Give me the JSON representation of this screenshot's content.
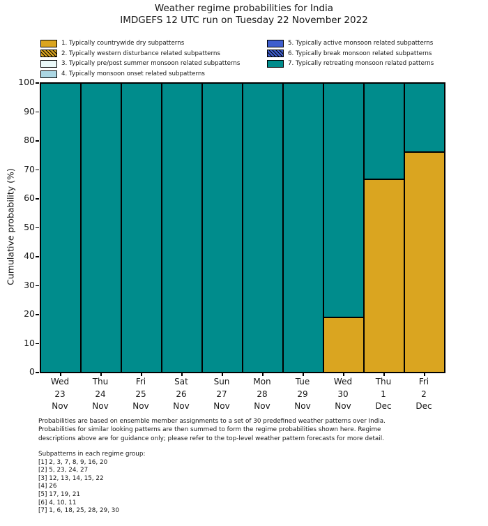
{
  "title": "Weather regime probabilities for India",
  "subtitle": "IMDGEFS 12 UTC run on Tuesday 22 November 2022",
  "legend": {
    "items": [
      {
        "id": 1,
        "label": "1. Typically countrywide dry subpatterns",
        "color": "#DAA520",
        "hatch": false
      },
      {
        "id": 2,
        "label": "2. Typically western disturbance related subpatterns",
        "color": "#DAA520",
        "hatch": true
      },
      {
        "id": 3,
        "label": "3. Typically pre/post summer monsoon related subpatterns",
        "color": "#EAF8F8",
        "hatch": false
      },
      {
        "id": 4,
        "label": "4. Typically monsoon onset related subpatterns",
        "color": "#ABD6E3",
        "hatch": false
      },
      {
        "id": 5,
        "label": "5. Typically active monsoon related subpatterns",
        "color": "#3E5ECE",
        "hatch": false
      },
      {
        "id": 6,
        "label": "6. Typically break monsoon related subpatterns",
        "color": "#3E5ECE",
        "hatch": true
      },
      {
        "id": 7,
        "label": "7. Typically retreating monsoon related patterns",
        "color": "#008C8C",
        "hatch": false
      }
    ]
  },
  "y_axis": {
    "label": "Cumulative probability (%)",
    "ticks": [
      0,
      10,
      20,
      30,
      40,
      50,
      60,
      70,
      80,
      90,
      100
    ],
    "min": 0,
    "max": 100
  },
  "chart_data": {
    "type": "bar",
    "stacked": true,
    "title": "Weather regime probabilities for India",
    "xlabel": "",
    "ylabel": "Cumulative probability (%)",
    "ylim": [
      0,
      100
    ],
    "grid": false,
    "legend_position": "above-plot, two columns",
    "categories": [
      {
        "day": "Wed",
        "date": "23",
        "month": "Nov"
      },
      {
        "day": "Thu",
        "date": "24",
        "month": "Nov"
      },
      {
        "day": "Fri",
        "date": "25",
        "month": "Nov"
      },
      {
        "day": "Sat",
        "date": "26",
        "month": "Nov"
      },
      {
        "day": "Sun",
        "date": "27",
        "month": "Nov"
      },
      {
        "day": "Mon",
        "date": "28",
        "month": "Nov"
      },
      {
        "day": "Tue",
        "date": "29",
        "month": "Nov"
      },
      {
        "day": "Wed",
        "date": "30",
        "month": "Nov"
      },
      {
        "day": "Thu",
        "date": "1",
        "month": "Dec"
      },
      {
        "day": "Fri",
        "date": "2",
        "month": "Dec"
      }
    ],
    "series": [
      {
        "name": "1. Typically countrywide dry subpatterns",
        "color": "#DAA520",
        "hatch": false,
        "values": [
          0,
          0,
          0,
          0,
          0,
          0,
          0,
          19,
          66.7,
          76.2
        ]
      },
      {
        "name": "2. Typically western disturbance related subpatterns",
        "color": "#DAA520",
        "hatch": true,
        "values": [
          0,
          0,
          0,
          0,
          0,
          0,
          0,
          0,
          0,
          0
        ]
      },
      {
        "name": "3. Typically pre/post summer monsoon related subpatterns",
        "color": "#EAF8F8",
        "hatch": false,
        "values": [
          0,
          0,
          0,
          0,
          0,
          0,
          0,
          0,
          0,
          0
        ]
      },
      {
        "name": "4. Typically monsoon onset related subpatterns",
        "color": "#ABD6E3",
        "hatch": false,
        "values": [
          0,
          0,
          0,
          0,
          0,
          0,
          0,
          0,
          0,
          0
        ]
      },
      {
        "name": "5. Typically active monsoon related subpatterns",
        "color": "#3E5ECE",
        "hatch": false,
        "values": [
          0,
          0,
          0,
          0,
          0,
          0,
          0,
          0,
          0,
          0
        ]
      },
      {
        "name": "6. Typically break monsoon related subpatterns",
        "color": "#3E5ECE",
        "hatch": true,
        "values": [
          0,
          0,
          0,
          0,
          0,
          0,
          0,
          0,
          0,
          0
        ]
      },
      {
        "name": "7. Typically retreating monsoon related patterns",
        "color": "#008C8C",
        "hatch": false,
        "values": [
          100,
          100,
          100,
          100,
          100,
          100,
          100,
          81,
          33.3,
          23.8
        ]
      }
    ]
  },
  "footnote": {
    "lines": [
      "Probabilities are based on ensemble member assignments to a set of 30 predefined weather patterns over India.",
      "Probabilities for similar looking patterns are then summed to form the regime probabilities shown here. Regime",
      "descriptions above are for guidance only; please refer to the top-level weather pattern forecasts for more detail."
    ]
  },
  "subpatterns": {
    "heading": "Subpatterns in each regime group:",
    "lines": [
      "[1] 2, 3, 7, 8, 9, 16, 20",
      "[2] 5, 23, 24, 27",
      "[3] 12, 13, 14, 15, 22",
      "[4] 26",
      "[5] 17, 19, 21",
      "[6] 4, 10, 11",
      "[7] 1, 6, 18, 25, 28, 29, 30"
    ]
  }
}
